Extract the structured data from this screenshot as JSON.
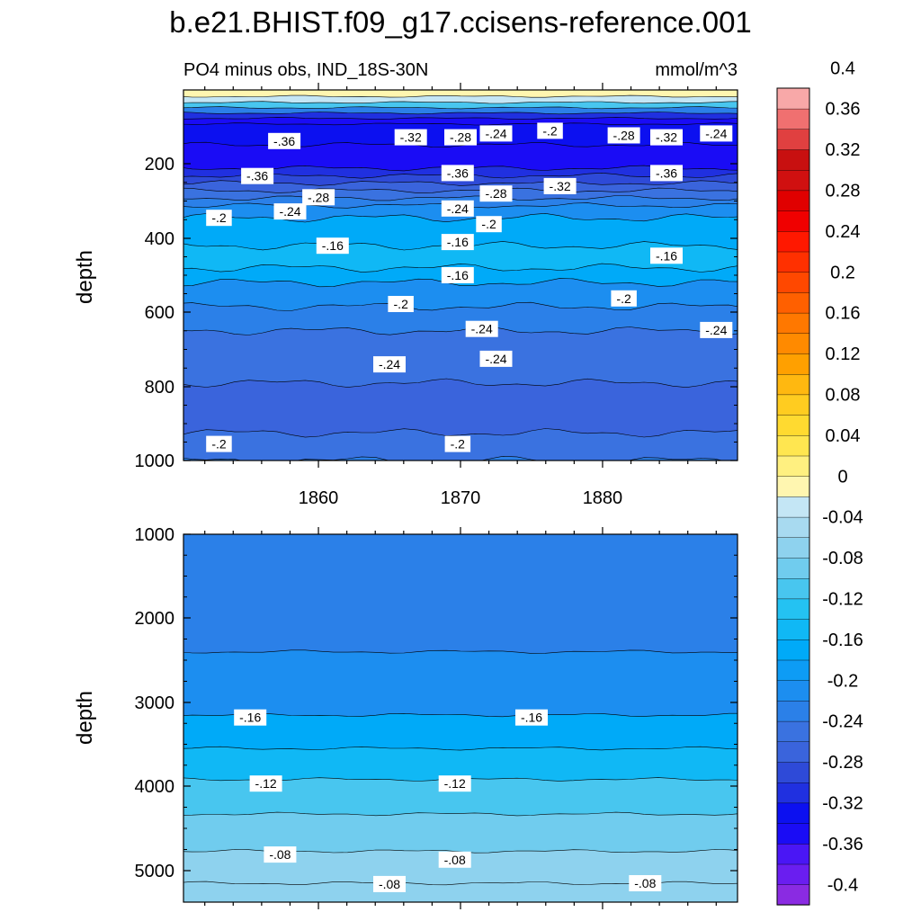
{
  "figure": {
    "title": "b.e21.BHIST.f09_g17.ccisens-reference.001",
    "left_string": "PO4 minus obs, IND_18S-30N",
    "right_string": "mmol/m^3"
  },
  "chart_data": [
    {
      "type": "heatmap",
      "panel": "upper",
      "description": "filled contour, time vs depth",
      "xlabel": "",
      "ylabel": "depth",
      "xlim": [
        1850.5,
        1889.5
      ],
      "ylim": [
        1000,
        5
      ],
      "x_ticks": [
        1860,
        1870,
        1880
      ],
      "x_tick_labels": [
        "1860",
        "1870",
        "1880"
      ],
      "y_ticks": [
        200,
        400,
        600,
        800,
        1000
      ],
      "y_tick_labels": [
        "200",
        "400",
        "600",
        "800",
        "1000"
      ],
      "contour_labels": [
        {
          "text": "-.36",
          "x": 1857.6,
          "y": 140
        },
        {
          "text": "-.32",
          "x": 1866.5,
          "y": 130
        },
        {
          "text": "-.28",
          "x": 1870.0,
          "y": 130
        },
        {
          "text": "-.24",
          "x": 1872.5,
          "y": 120
        },
        {
          "text": "-.2",
          "x": 1876.3,
          "y": 113
        },
        {
          "text": "-.28",
          "x": 1881.5,
          "y": 125
        },
        {
          "text": "-.32",
          "x": 1884.5,
          "y": 130
        },
        {
          "text": "-.24",
          "x": 1888.0,
          "y": 120
        },
        {
          "text": "-.36",
          "x": 1855.7,
          "y": 233
        },
        {
          "text": "-.36",
          "x": 1869.8,
          "y": 225
        },
        {
          "text": "-.36",
          "x": 1884.5,
          "y": 225
        },
        {
          "text": "-.28",
          "x": 1860.0,
          "y": 290
        },
        {
          "text": "-.28",
          "x": 1872.5,
          "y": 280
        },
        {
          "text": "-.32",
          "x": 1877.0,
          "y": 260
        },
        {
          "text": "-.24",
          "x": 1858.0,
          "y": 328
        },
        {
          "text": "-.24",
          "x": 1869.8,
          "y": 320
        },
        {
          "text": "-.2",
          "x": 1853.0,
          "y": 345
        },
        {
          "text": "-.2",
          "x": 1872.0,
          "y": 362
        },
        {
          "text": "-.16",
          "x": 1861.0,
          "y": 420
        },
        {
          "text": "-.16",
          "x": 1869.8,
          "y": 410
        },
        {
          "text": "-.16",
          "x": 1884.5,
          "y": 447
        },
        {
          "text": "-.16",
          "x": 1869.8,
          "y": 500
        },
        {
          "text": "-.2",
          "x": 1865.8,
          "y": 578
        },
        {
          "text": "-.2",
          "x": 1881.5,
          "y": 563
        },
        {
          "text": "-.24",
          "x": 1871.5,
          "y": 645
        },
        {
          "text": "-.24",
          "x": 1888.0,
          "y": 648
        },
        {
          "text": "-.24",
          "x": 1865.0,
          "y": 740
        },
        {
          "text": "-.24",
          "x": 1872.5,
          "y": 725
        },
        {
          "text": "-.2",
          "x": 1853.0,
          "y": 955
        },
        {
          "text": "-.2",
          "x": 1869.8,
          "y": 955
        }
      ]
    },
    {
      "type": "heatmap",
      "panel": "lower",
      "description": "filled contour, time vs depth",
      "xlabel": "",
      "ylabel": "depth",
      "xlim": [
        1850.5,
        1889.5
      ],
      "ylim": [
        5375,
        1000
      ],
      "x_ticks": [
        1860,
        1870,
        1880
      ],
      "y_ticks": [
        1000,
        2000,
        3000,
        4000,
        5000
      ],
      "y_tick_labels": [
        "1000",
        "2000",
        "3000",
        "4000",
        "5000"
      ],
      "contour_labels": [
        {
          "text": "-.16",
          "x": 1855.2,
          "y": 3180
        },
        {
          "text": "-.16",
          "x": 1875.0,
          "y": 3180
        },
        {
          "text": "-.12",
          "x": 1856.3,
          "y": 3970
        },
        {
          "text": "-.12",
          "x": 1869.6,
          "y": 3970
        },
        {
          "text": "-.08",
          "x": 1857.3,
          "y": 4810
        },
        {
          "text": "-.08",
          "x": 1869.6,
          "y": 4870
        },
        {
          "text": "-.08",
          "x": 1865.0,
          "y": 5160
        },
        {
          "text": "-.08",
          "x": 1883.0,
          "y": 5150
        }
      ]
    }
  ],
  "colorbar": {
    "levels": [
      "-0.4",
      "-0.36",
      "-0.32",
      "-0.28",
      "-0.24",
      "-0.2",
      "-0.16",
      "-0.12",
      "-0.08",
      "-0.04",
      "0",
      "0.04",
      "0.08",
      "0.12",
      "0.16",
      "0.2",
      "0.24",
      "0.28",
      "0.32",
      "0.36",
      "0.4"
    ],
    "colors_bottom_to_top": [
      "#8a2be2",
      "#6a1ef0",
      "#4a16f5",
      "#1a0cf5",
      "#0c10f0",
      "#2030e0",
      "#2e4ad8",
      "#3a64dc",
      "#3a72e0",
      "#2b80e8",
      "#1c8ef0",
      "#0d9cf5",
      "#00aaf8",
      "#10b8f5",
      "#24c2f2",
      "#48c6ef",
      "#70ccee",
      "#8ed2ee",
      "#a8daf0",
      "#c4e6f5",
      "#fff6b0",
      "#fff080",
      "#ffe650",
      "#ffda30",
      "#ffcc20",
      "#ffb810",
      "#ffa000",
      "#ff8a00",
      "#ff7800",
      "#ff6000",
      "#ff4800",
      "#ff3000",
      "#ff1800",
      "#f00000",
      "#e00000",
      "#d01010",
      "#c81010",
      "#e04040",
      "#f07070",
      "#f8a8a8"
    ]
  },
  "style": {
    "upper_fill_top_to_bottom": [
      "#fff6b0",
      "#c4e6f5",
      "#48c6ef",
      "#2b80e8",
      "#2030e0",
      "#1a0cf5",
      "#0c10f0",
      "#1a0cf5",
      "#2030e0",
      "#2e4ad8",
      "#3a64dc",
      "#3a72e0",
      "#2b80e8",
      "#1c8ef0",
      "#00aaf8",
      "#10b8f5",
      "#00aaf8",
      "#1c8ef0",
      "#2b80e8",
      "#3a72e0",
      "#3a64dc",
      "#3a72e0",
      "#2b80e8"
    ],
    "lower_fill_top_to_bottom": [
      "#2b80e8",
      "#1c8ef0",
      "#00aaf8",
      "#10b8f5",
      "#48c6ef",
      "#70ccee",
      "#8ed2ee"
    ]
  }
}
